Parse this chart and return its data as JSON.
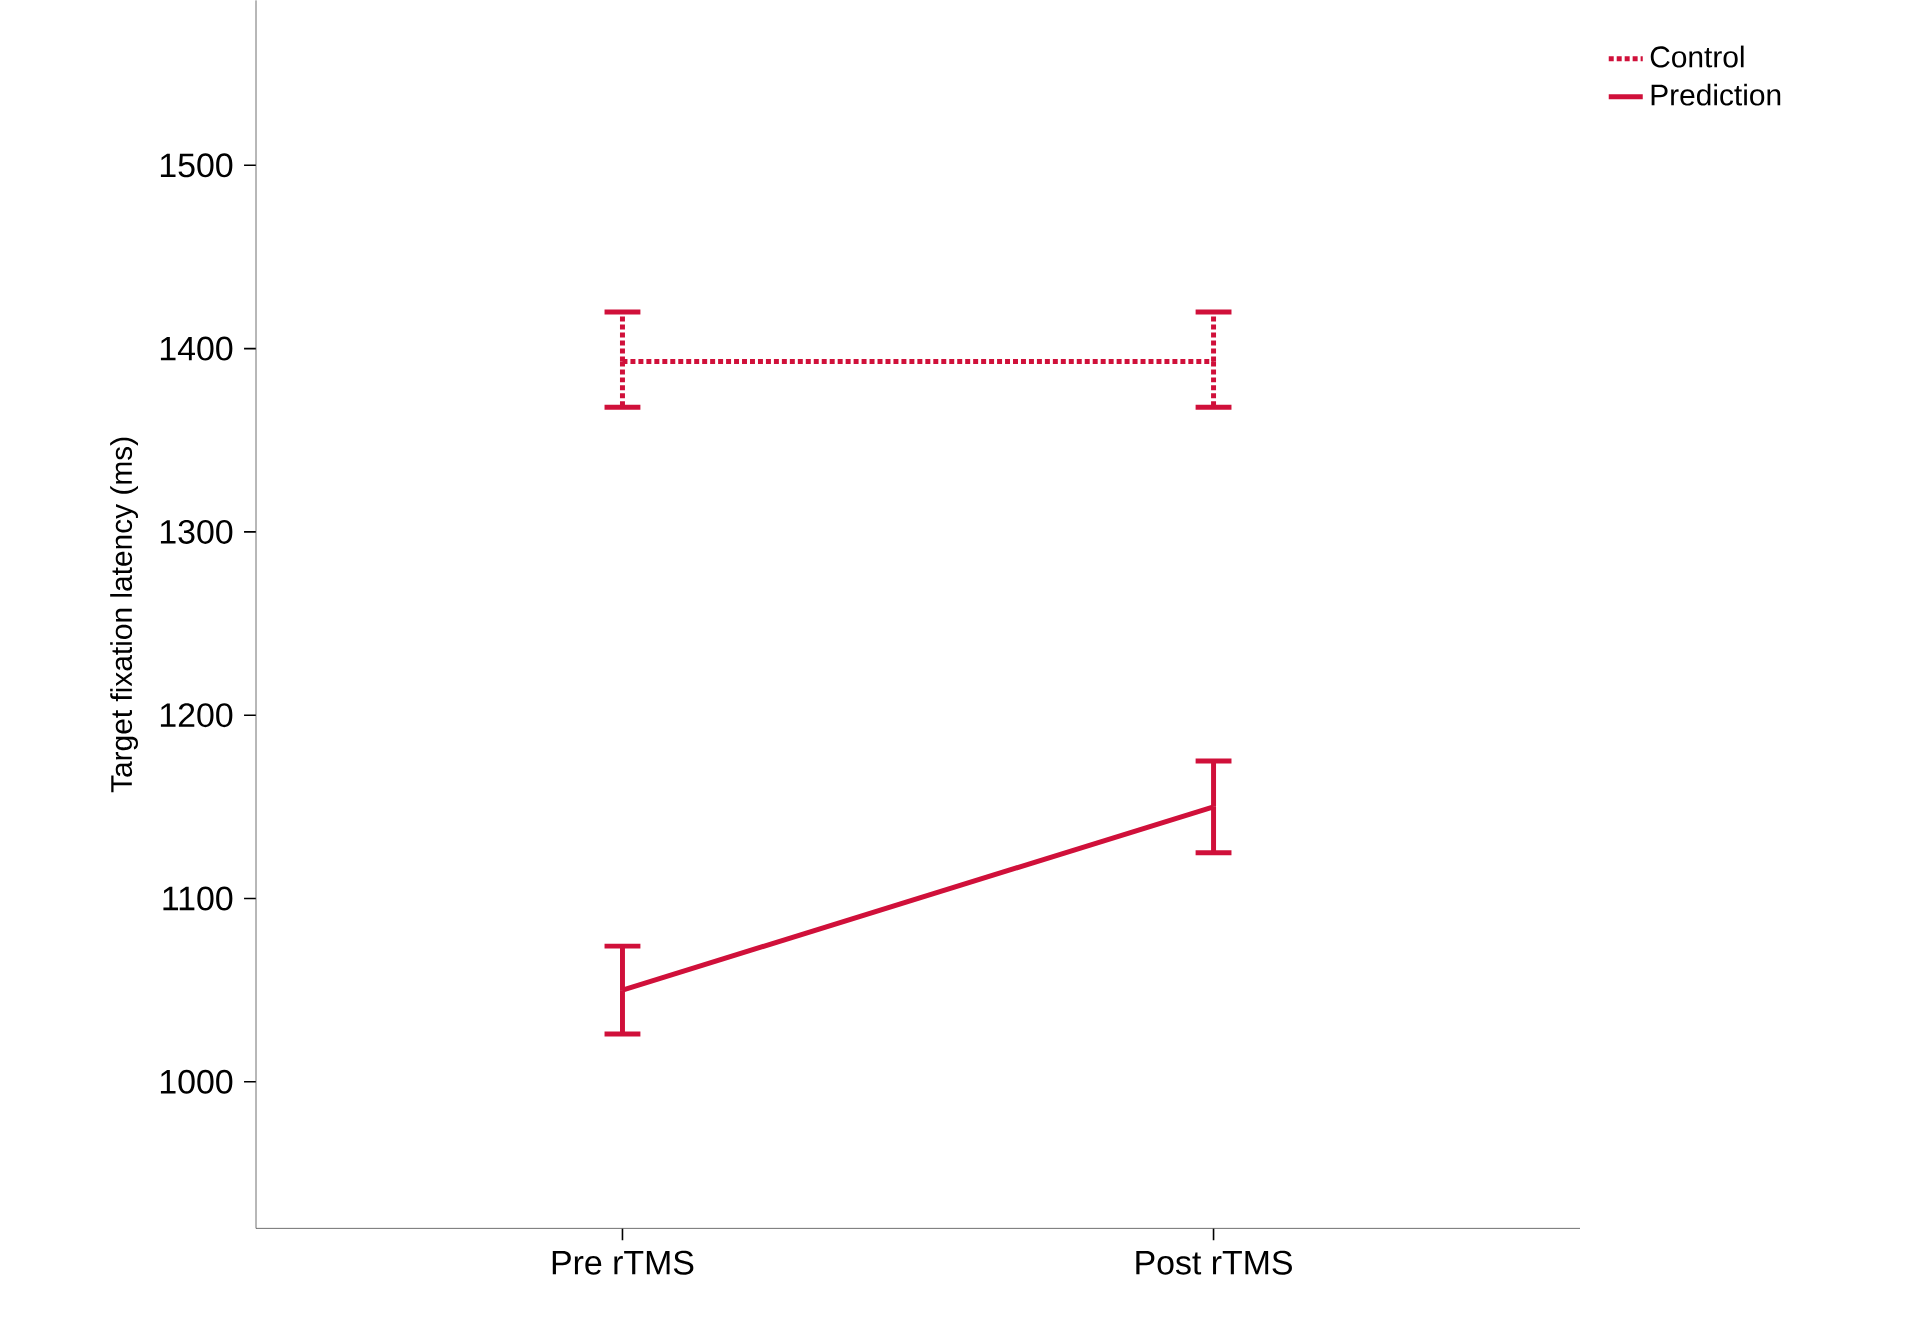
{
  "chart_data": {
    "type": "line",
    "ylabel": "Target fixation latency (ms)",
    "categories": [
      "Pre rTMS",
      "Post rTMS"
    ],
    "ylim": [
      920,
      1590
    ],
    "yticks": [
      1000,
      1100,
      1200,
      1300,
      1400,
      1500
    ],
    "legend": "top right",
    "marker": "none",
    "series": [
      {
        "name": "Control",
        "color": "#d0103a",
        "line_style": "dotted",
        "values": [
          1393,
          1393
        ],
        "errors": [
          [
            1368,
            1420
          ],
          [
            1368,
            1420
          ]
        ]
      },
      {
        "name": "Prediction",
        "color": "#d0103a",
        "line_style": "solid",
        "values": [
          1050,
          1150
        ],
        "errors": [
          [
            1026,
            1074
          ],
          [
            1125,
            1175
          ]
        ]
      }
    ]
  }
}
